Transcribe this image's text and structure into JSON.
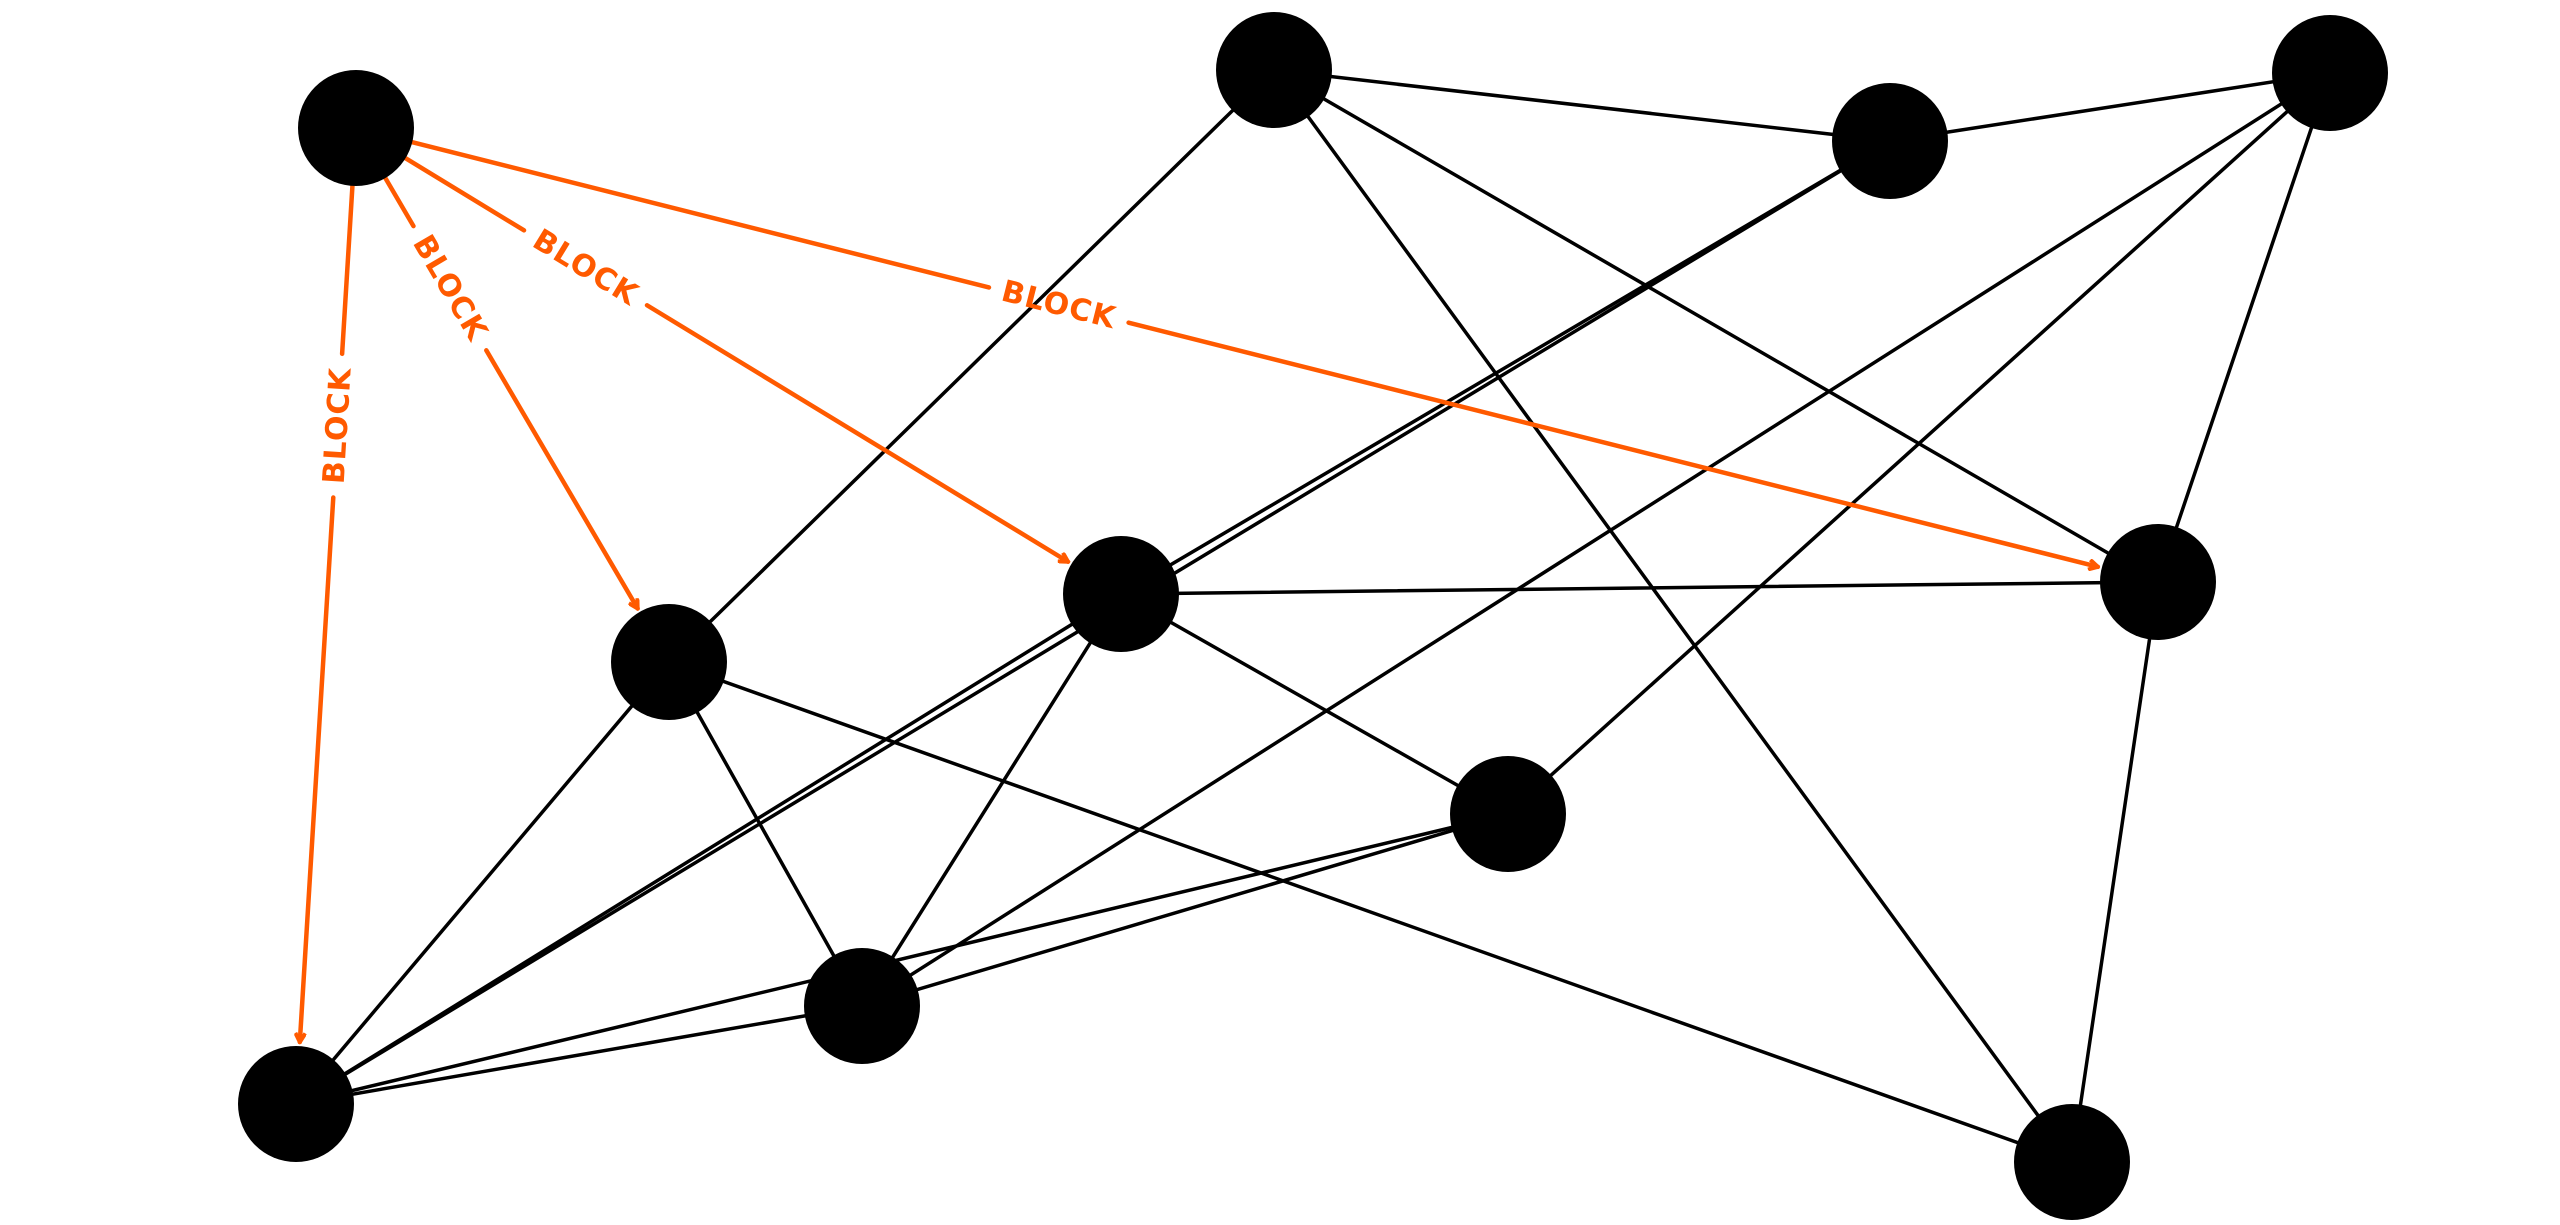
{
  "colors": {
    "highlight": "#ff5a00",
    "node": "#000000",
    "edge": "#000000",
    "background": "#ffffff"
  },
  "nodes": [
    {
      "id": "source",
      "highlighted": true
    },
    {
      "id": "n1"
    },
    {
      "id": "n2"
    },
    {
      "id": "n3"
    },
    {
      "id": "n4"
    },
    {
      "id": "n5"
    },
    {
      "id": "n6"
    },
    {
      "id": "n7"
    },
    {
      "id": "n8"
    },
    {
      "id": "n9"
    },
    {
      "id": "n10"
    }
  ],
  "edges": [
    {
      "from": "n1",
      "to": "n2"
    },
    {
      "from": "n2",
      "to": "n3"
    },
    {
      "from": "n1",
      "to": "n4"
    },
    {
      "from": "n1",
      "to": "n6"
    },
    {
      "from": "n1",
      "to": "n10"
    },
    {
      "from": "n2",
      "to": "n5"
    },
    {
      "from": "n2",
      "to": "n9"
    },
    {
      "from": "n3",
      "to": "n6"
    },
    {
      "from": "n3",
      "to": "n8"
    },
    {
      "from": "n3",
      "to": "n7"
    },
    {
      "from": "n5",
      "to": "n9"
    },
    {
      "from": "n5",
      "to": "n7"
    },
    {
      "from": "n5",
      "to": "n8"
    },
    {
      "from": "n5",
      "to": "n6"
    },
    {
      "from": "n4",
      "to": "n8"
    },
    {
      "from": "n4",
      "to": "n9"
    },
    {
      "from": "n4",
      "to": "n10"
    },
    {
      "from": "n6",
      "to": "n10"
    },
    {
      "from": "n7",
      "to": "n9"
    },
    {
      "from": "n7",
      "to": "n8"
    },
    {
      "from": "n8",
      "to": "n9"
    }
  ],
  "block_edges": [
    {
      "from": "source",
      "to": "n4",
      "label": "BLOCK"
    },
    {
      "from": "source",
      "to": "n5",
      "label": "BLOCK"
    },
    {
      "from": "source",
      "to": "n6",
      "label": "BLOCK"
    },
    {
      "from": "source",
      "to": "n9",
      "label": "BLOCK"
    }
  ]
}
